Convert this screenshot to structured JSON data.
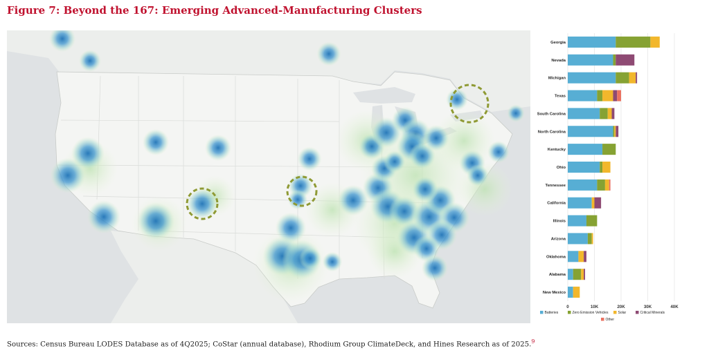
{
  "title": "Figure 7: Beyond the 167: Emerging Advanced-Manufacturing Clusters",
  "source": "Sources: Census Bureau LODES Database as of 4Q2025; CoStar (annual database), Rhodium Group ClimateDeck, and Hines Research as of 2025.",
  "source_mark": "9",
  "colors": {
    "Batteries": "#57aed4",
    "Zero Emission Vehicles": "#86a233",
    "Solar": "#f2b72c",
    "Critical Minerals": "#8e4a73",
    "Other": "#ea7160",
    "heat_core": "#1f73b7",
    "emerging_circle": "#8f9a34",
    "land": "#f4f5f3",
    "water": "#dfe2e4"
  },
  "chart_data": {
    "type": "bar",
    "orientation": "horizontal",
    "stacked": true,
    "categories": [
      "Georgia",
      "Nevada",
      "Michigan",
      "Texas",
      "South Carolina",
      "North Carolina",
      "Kentucky",
      "Ohio",
      "Tennessee",
      "California",
      "Illinois",
      "Arizona",
      "Oklahoma",
      "Alabama",
      "New Mexico"
    ],
    "series": [
      {
        "name": "Batteries",
        "values": [
          18000,
          17000,
          18000,
          11000,
          12000,
          17000,
          13000,
          12000,
          11000,
          9000,
          7000,
          7500,
          4000,
          2000,
          2000
        ]
      },
      {
        "name": "Zero Emission Vehicles",
        "values": [
          13000,
          1000,
          5000,
          2000,
          3000,
          500,
          5000,
          1000,
          3000,
          0,
          4000,
          1500,
          0,
          3000,
          0
        ]
      },
      {
        "name": "Solar",
        "values": [
          3500,
          0,
          2500,
          4000,
          1500,
          500,
          0,
          3000,
          1500,
          1000,
          0,
          500,
          2000,
          1000,
          2500
        ]
      },
      {
        "name": "Critical Minerals",
        "values": [
          0,
          7000,
          500,
          1500,
          1000,
          1000,
          0,
          0,
          0,
          2500,
          0,
          0,
          1000,
          500,
          0
        ]
      },
      {
        "name": "Other",
        "values": [
          0,
          0,
          0,
          1500,
          0,
          0,
          0,
          0,
          500,
          0,
          0,
          0,
          0,
          0,
          0
        ]
      }
    ],
    "xlim": [
      0,
      40000
    ],
    "xticks": [
      0,
      10000,
      20000,
      30000,
      40000
    ],
    "xtick_labels": [
      "0",
      "10K",
      "20K",
      "30K",
      "40K"
    ],
    "grid": true,
    "legend_position": "bottom"
  },
  "map": {
    "type": "heatmap",
    "region": "contiguous United States",
    "emerging_clusters_highlighted": 4
  }
}
